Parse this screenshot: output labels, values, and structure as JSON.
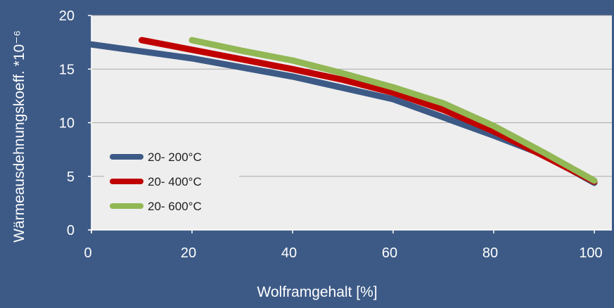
{
  "chart_data": {
    "type": "line",
    "title": "",
    "xlabel": "Wolframgehalt [%]",
    "ylabel": "Wärmeausdehnungskoeff. *10⁻⁶",
    "xlim": [
      0,
      100
    ],
    "ylim": [
      0,
      20
    ],
    "xticks": [
      "0",
      "20",
      "40",
      "60",
      "80",
      "100"
    ],
    "yticks": [
      "0",
      "5",
      "10",
      "15",
      "20"
    ],
    "grid": "horizontal",
    "legend_position": "lower-left",
    "colors": {
      "background": "#3d5a86",
      "plot_area": "#eeeeee",
      "gridline": "#a9a9a9"
    },
    "series": [
      {
        "name": "20- 200°C",
        "color": "#3d5a86",
        "points": [
          [
            0,
            17.3
          ],
          [
            20,
            16.0
          ],
          [
            40,
            14.3
          ],
          [
            60,
            12.2
          ],
          [
            80,
            8.8
          ],
          [
            90,
            7.0
          ],
          [
            100,
            4.4
          ]
        ]
      },
      {
        "name": "20- 400°C",
        "color": "#c00000",
        "points": [
          [
            10,
            17.7
          ],
          [
            20,
            16.8
          ],
          [
            30,
            15.9
          ],
          [
            40,
            15.0
          ],
          [
            50,
            14.0
          ],
          [
            60,
            12.8
          ],
          [
            70,
            11.2
          ],
          [
            80,
            9.2
          ],
          [
            90,
            6.9
          ],
          [
            100,
            4.5
          ]
        ]
      },
      {
        "name": "20- 600°C",
        "color": "#92b755",
        "points": [
          [
            20,
            17.7
          ],
          [
            30,
            16.7
          ],
          [
            40,
            15.8
          ],
          [
            50,
            14.6
          ],
          [
            60,
            13.3
          ],
          [
            70,
            11.8
          ],
          [
            80,
            9.7
          ],
          [
            90,
            7.2
          ],
          [
            100,
            4.6
          ]
        ]
      }
    ]
  }
}
